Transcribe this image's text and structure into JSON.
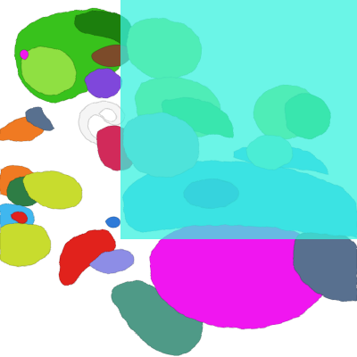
{
  "scene": {
    "background": "#ffffff",
    "overlay": {
      "color": "#39f2df",
      "opacity": 0.75
    },
    "palette": {
      "green": "#39c21a",
      "green_dark": "#1f7f10",
      "lime": "#8fe043",
      "yellow_green": "#c8dc2e",
      "orange": "#f07a22",
      "red": "#e1201f",
      "crimson": "#d12c5a",
      "blue": "#2f7ad8",
      "sky": "#41b7ef",
      "purple": "#7f46db",
      "lavender": "#8d8de6",
      "magenta": "#f018f0",
      "teal": "#4f9a87",
      "teal_light": "#68b49f",
      "forest": "#2f7d45",
      "white": "#f5f5f5",
      "steel": "#58708f"
    }
  }
}
